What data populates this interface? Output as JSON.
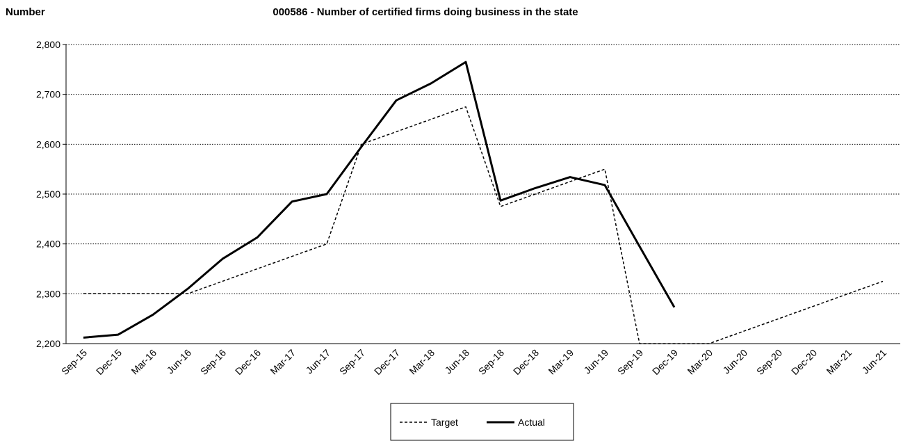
{
  "chart_data": {
    "type": "line",
    "title": "000586 - Number of certified firms doing business in the state",
    "y_label": "Number",
    "categories": [
      "Sep-15",
      "Dec-15",
      "Mar-16",
      "Jun-16",
      "Sep-16",
      "Dec-16",
      "Mar-17",
      "Jun-17",
      "Sep-17",
      "Dec-17",
      "Mar-18",
      "Jun-18",
      "Sep-18",
      "Dec-18",
      "Mar-19",
      "Jun-19",
      "Sep-19",
      "Dec-19",
      "Mar-20",
      "Jun-20",
      "Sep-20",
      "Dec-20",
      "Mar-21",
      "Jun-21"
    ],
    "series": [
      {
        "name": "Target",
        "color": "#000000",
        "dash": true,
        "values": [
          2300,
          2300,
          2300,
          2300,
          2325,
          2350,
          2375,
          2400,
          2600,
          2625,
          2650,
          2675,
          2475,
          2500,
          2525,
          2550,
          2200,
          2200,
          2200,
          2225,
          2250,
          2275,
          2300,
          2325
        ]
      },
      {
        "name": "Actual",
        "color": "#000000",
        "dash": false,
        "values": [
          2212,
          2218,
          2258,
          2310,
          2370,
          2413,
          2485,
          2500,
          2595,
          2688,
          2722,
          2765,
          2487,
          2512,
          2534,
          2518,
          2395,
          2273,
          null,
          null,
          null,
          null,
          null,
          null
        ]
      }
    ],
    "ylim": [
      2200,
      2800
    ],
    "yticks": [
      {
        "value": 2200,
        "label": "2,200"
      },
      {
        "value": 2300,
        "label": "2,300"
      },
      {
        "value": 2400,
        "label": "2,400"
      },
      {
        "value": 2500,
        "label": "2,500"
      },
      {
        "value": 2600,
        "label": "2,600"
      },
      {
        "value": 2700,
        "label": "2,700"
      },
      {
        "value": 2800,
        "label": "2,800"
      }
    ],
    "grid": true,
    "legend": "bottom"
  }
}
